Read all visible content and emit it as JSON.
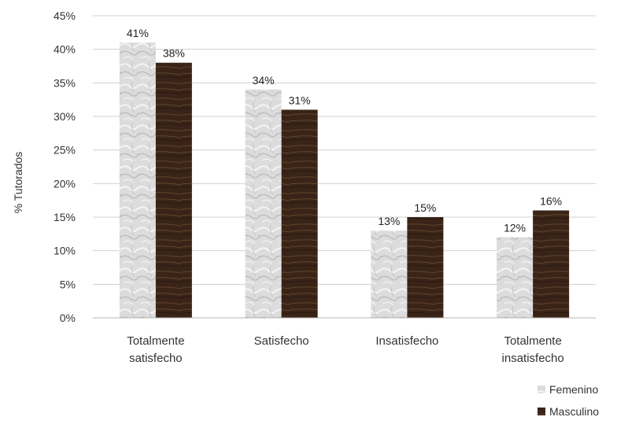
{
  "chart_data": {
    "type": "bar",
    "categories": [
      [
        "Totalmente",
        "satisfecho"
      ],
      [
        "Satisfecho"
      ],
      [
        "Insatisfecho"
      ],
      [
        "Totalmente",
        "insatisfecho"
      ]
    ],
    "series": [
      {
        "name": "Femenino",
        "values": [
          41,
          34,
          13,
          12
        ],
        "labels": [
          "41%",
          "34%",
          "13%",
          "12%"
        ],
        "color": "#d9d9d9"
      },
      {
        "name": "Masculino",
        "values": [
          38,
          31,
          15,
          16
        ],
        "labels": [
          "38%",
          "31%",
          "15%",
          "16%"
        ],
        "color": "#3a2418"
      }
    ],
    "ylabel": "% Tutorados",
    "ylim": [
      0,
      45
    ],
    "yticks": [
      0,
      5,
      10,
      15,
      20,
      25,
      30,
      35,
      40,
      45
    ],
    "ytick_labels": [
      "0%",
      "5%",
      "10%",
      "15%",
      "20%",
      "25%",
      "30%",
      "35%",
      "40%",
      "45%"
    ],
    "grid": true,
    "legend_position": "bottom-right"
  }
}
